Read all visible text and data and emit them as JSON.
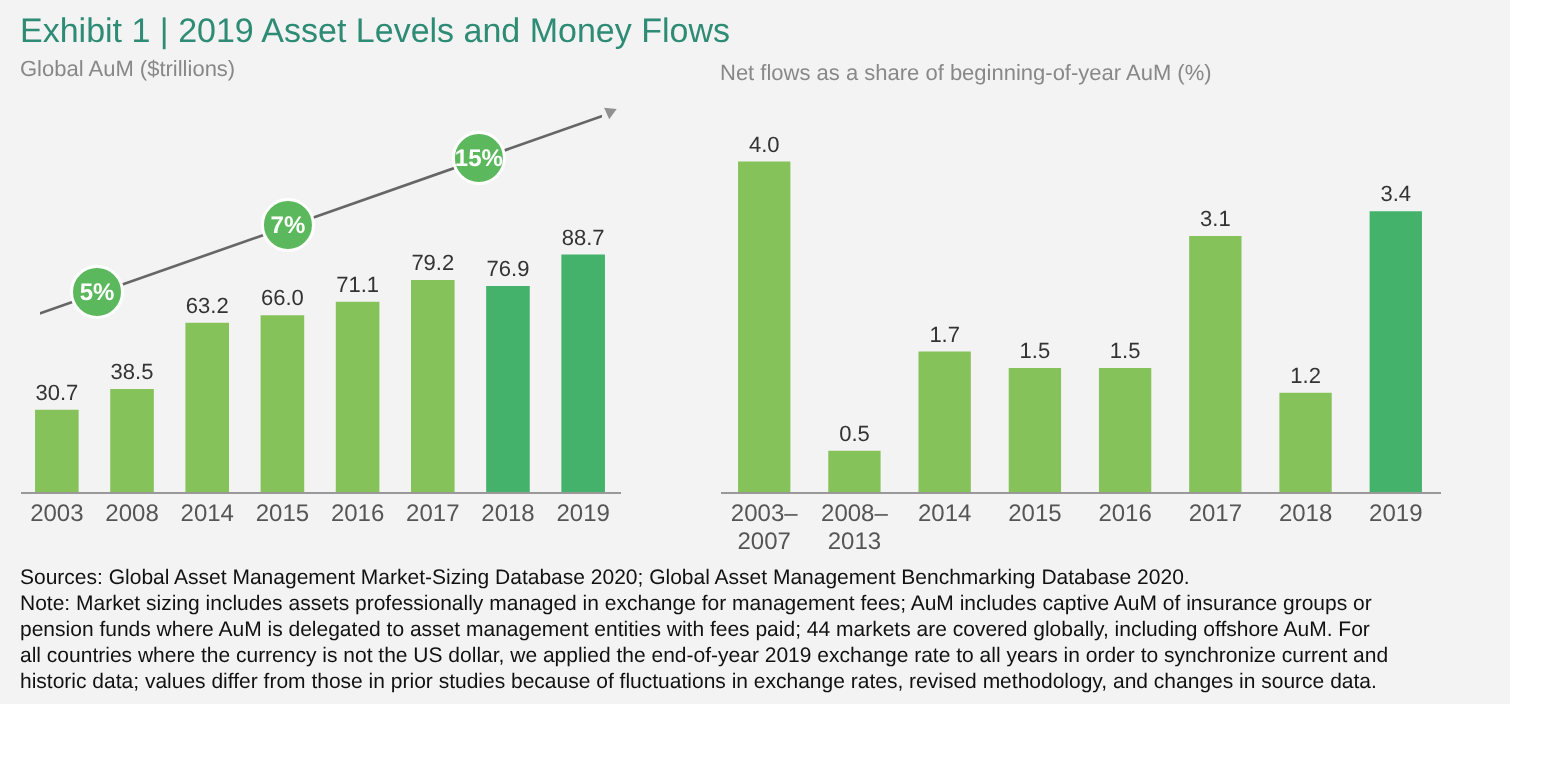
{
  "chart_data": [
    {
      "type": "bar",
      "title": "Exhibit 1 | 2019 Asset Levels and Money Flows",
      "subtitle": "Global AuM ($trillions)",
      "categories": [
        "2003",
        "2008",
        "2014",
        "2015",
        "2016",
        "2017",
        "2018",
        "2019"
      ],
      "values": [
        30.7,
        38.5,
        63.2,
        66.0,
        71.1,
        79.2,
        76.9,
        88.7
      ],
      "value_labels": [
        "30.7",
        "38.5",
        "63.2",
        "66.0",
        "71.1",
        "79.2",
        "76.9",
        "88.7"
      ],
      "colors": [
        "#86c25a",
        "#86c25a",
        "#86c25a",
        "#86c25a",
        "#86c25a",
        "#86c25a",
        "#45b26b",
        "#45b26b"
      ],
      "annotations": [
        "5%",
        "7%",
        "15%"
      ]
    },
    {
      "type": "bar",
      "title": "Net flows as a share of beginning-of-year AuM (%)",
      "categories": [
        "2003–2007",
        "2008–2013",
        "2014",
        "2015",
        "2016",
        "2017",
        "2018",
        "2019"
      ],
      "values": [
        4.0,
        0.5,
        1.7,
        1.5,
        1.5,
        3.1,
        1.2,
        3.4
      ],
      "value_labels": [
        "4.0",
        "0.5",
        "1.7",
        "1.5",
        "1.5",
        "3.1",
        "1.2",
        "3.4"
      ],
      "colors": [
        "#86c25a",
        "#86c25a",
        "#86c25a",
        "#86c25a",
        "#86c25a",
        "#86c25a",
        "#86c25a",
        "#45b26b"
      ],
      "annotations": [
        "Sources: Global Asset Management Market-Sizing Database 2020; Global Asset Management Benchmarking Database 2020.",
        "Note: Market sizing includes assets professionally managed in exchange for management fees; AuM includes captive AuM of insurance groups or",
        "pension funds where AuM is delegated to asset management entities with fees paid; 44 markets are covered globally, including offshore AuM. For",
        "all countries where the currency is not the US dollar, we applied the end-of-year 2019 exchange rate to all years in order to synchronize current and",
        "historic data; values differ from those in prior studies because of fluctuations in exchange rates, revised methodology, and changes in source data."
      ]
    }
  ]
}
